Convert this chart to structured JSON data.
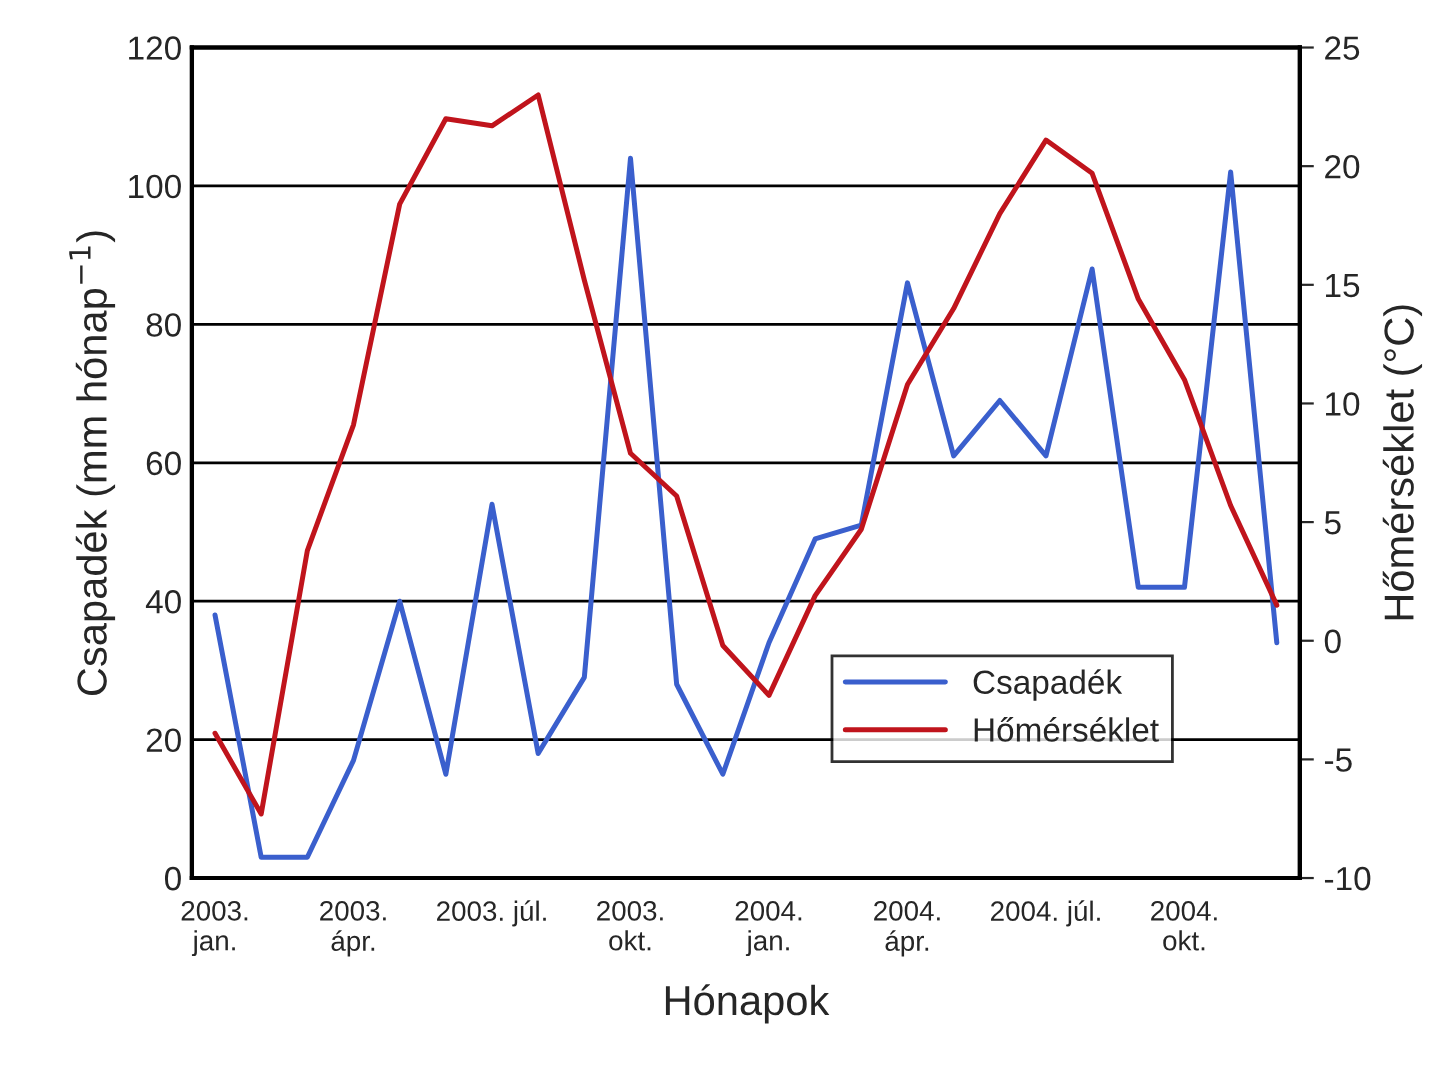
{
  "chart_data": {
    "type": "line",
    "xlabel": "Hónapok",
    "ylabel": "Csapadék (mm hónap$^{−1}$)",
    "y2label": "Hőmérséklet (°C)",
    "categories": [
      "2003.\njan.",
      null,
      null,
      "2003.\nápr.",
      null,
      null,
      "2003. júl.",
      null,
      null,
      "2003.\nokt.",
      null,
      null,
      "2004.\njan.",
      null,
      null,
      "2004.\nápr.",
      null,
      null,
      "2004. júl.",
      null,
      null,
      "2004.\nokt.",
      null,
      null
    ],
    "series": [
      {
        "name": "Csapadék",
        "color": "#3a5fcd",
        "values": [
          38,
          3,
          3,
          17,
          40,
          15,
          54,
          18,
          29,
          104,
          28,
          15,
          34,
          49,
          51,
          86,
          61,
          69,
          61,
          88,
          42,
          42,
          102,
          34
        ]
      },
      {
        "name": "Hőmérséklet",
        "color": "#c0141c",
        "axis": "y2",
        "values": [
          -3.9,
          -7.3,
          3.8,
          9.1,
          18.4,
          22.0,
          21.7,
          23.0,
          15.2,
          7.9,
          6.1,
          -0.2,
          -2.3,
          1.9,
          4.7,
          10.8,
          14.0,
          18.0,
          21.1,
          19.7,
          14.4,
          11.0,
          5.7,
          1.5
        ]
      }
    ],
    "ylim": [
      0,
      120
    ],
    "yticks": [
      0,
      20,
      40,
      60,
      80,
      100,
      120
    ],
    "y2lim": [
      -10,
      25
    ],
    "y2ticks": [
      -10,
      -5,
      0,
      5,
      10,
      15,
      20,
      25
    ],
    "grid": "y",
    "legend": "bottom right",
    "marker": "none",
    "line_style": "solid"
  }
}
